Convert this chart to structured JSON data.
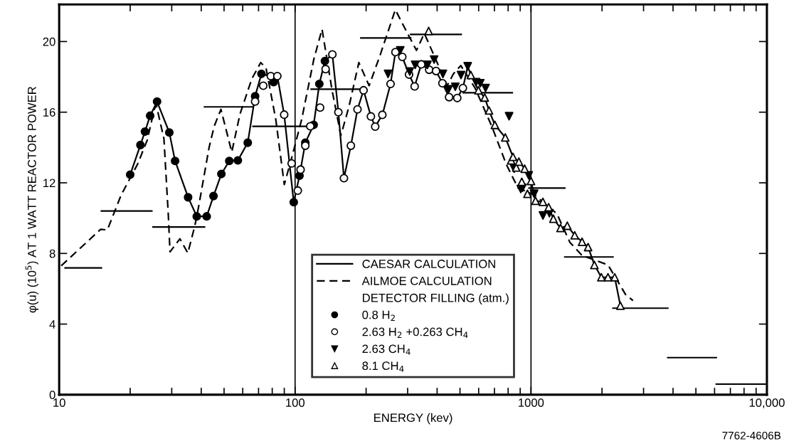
{
  "chart_data": {
    "type": "line",
    "xlabel": "ENERGY (kev)",
    "ylabel": "φ(u) (10$^{5}$) AT 1 WATT REACTOR POWER",
    "legend_title": "DETECTOR FILLING (atm.)",
    "log": "x",
    "xlim": [
      10,
      10000
    ],
    "xticks": [
      10,
      100,
      1000,
      {
        "value": 10000,
        "label": "10,000"
      }
    ],
    "ylim": [
      0,
      22.1
    ],
    "yticks": [
      0,
      4,
      8,
      12,
      16,
      20
    ],
    "ref_lines": [
      {
        "axis": "x",
        "value": 100,
        "color": "#000000"
      },
      {
        "axis": "x",
        "value": 1000,
        "color": "#000000"
      }
    ],
    "legend": "bottom",
    "annotations": [
      "7762-4606B"
    ],
    "series": [
      {
        "name": "CAESAR CALCULATION",
        "color": "#000000",
        "line_style": "solid",
        "x": [
          20.0,
          22.1,
          23.1,
          24.3,
          26.0,
          29.3,
          31.0,
          35.2,
          38.3,
          42.2,
          45.1,
          48.7,
          52.6,
          57.2,
          63.0,
          67.7,
          72.0,
          78.9,
          84.1,
          89.9,
          98.7,
          104.4,
          110.5,
          119.9,
          126.7,
          133.8,
          143.9,
          152.6,
          161.1,
          172.4,
          183.9,
          195.1,
          209.6,
          218.6,
          234.4,
          253.9,
          266.3,
          284.8,
          304.1,
          321.2,
          342.7,
          370.2,
          396.0,
          421.2,
          449.6,
          486.9,
          514.5,
          539.3,
          556,
          598.7,
          636.6,
          664,
          703,
          778,
          839,
          889,
          940,
          1000,
          1045,
          1123,
          1188,
          1244,
          1334,
          1425,
          1532,
          1646,
          1746,
          1857,
          1987,
          2120,
          2264,
          2393
        ],
        "values": [
          12.46,
          14.14,
          14.9,
          15.8,
          16.6,
          14.85,
          13.24,
          11.18,
          10.1,
          10.1,
          11.25,
          12.5,
          13.24,
          13.27,
          14.27,
          16.9,
          18.17,
          18.04,
          18.04,
          15.86,
          10.9,
          12.4,
          14.27,
          15.28,
          17.6,
          18.9,
          19.27,
          16.0,
          12.26,
          14.1,
          16.16,
          17.24,
          15.76,
          15.18,
          15.85,
          17.6,
          19.4,
          19.13,
          18.13,
          17.46,
          18.71,
          18.4,
          18.33,
          17.64,
          16.85,
          16.8,
          17.37,
          18.6,
          18.1,
          17.24,
          16.83,
          16.1,
          15.28,
          14.57,
          13.47,
          13.2,
          12.8,
          12.1,
          10.98,
          10.92,
          10.62,
          9.97,
          9.44,
          9.57,
          9.03,
          8.66,
          8.36,
          7.35,
          6.65,
          6.65,
          6.65,
          5.04
        ]
      },
      {
        "name": "AILMOE CALCULATION",
        "color": "#000000",
        "line_style": "dashed",
        "x": [
          10.2,
          15.0,
          16.0,
          18.3,
          21.5,
          23.6,
          25.3,
          25.8,
          27.8,
          29.0,
          29.5,
          32.5,
          35.1,
          37.6,
          39.0,
          43.2,
          45.4,
          48.5,
          53.9,
          58.4,
          65.6,
          71.5,
          75.3,
          82.8,
          90.0,
          97.0,
          106.7,
          120,
          130.1,
          143.5,
          156.3,
          169.1,
          186.3,
          206.0,
          229.6,
          266,
          304,
          327,
          353,
          393,
          441,
          469,
          504,
          579,
          682,
          785,
          880,
          1039,
          1288,
          1462,
          1645,
          2120,
          2518,
          2705
        ],
        "values": [
          7.3,
          9.37,
          9.33,
          11.3,
          13.06,
          14.4,
          16.16,
          16.4,
          14.5,
          10.24,
          8.09,
          8.83,
          8.02,
          9.57,
          10.65,
          14.0,
          15.2,
          16.16,
          13.74,
          15.89,
          17.9,
          18.81,
          18.5,
          15.6,
          11.9,
          13.47,
          15.6,
          18.98,
          20.7,
          17.24,
          14.68,
          16.3,
          18.81,
          17.5,
          19.25,
          21.8,
          20.3,
          19.5,
          20.46,
          19.05,
          17.5,
          18.17,
          18.64,
          17.37,
          15.2,
          13.06,
          11.72,
          11.3,
          10.24,
          8.63,
          7.89,
          7.35,
          5.67,
          5.33
        ]
      },
      {
        "color": "#000000",
        "line_style": "solid",
        "x": [
          10.6,
          15.1
        ],
        "values": [
          7.18,
          7.18
        ]
      },
      {
        "color": "#000000",
        "line_style": "solid",
        "x": [
          15.1,
          24.7
        ],
        "values": [
          10.4,
          10.4
        ]
      },
      {
        "color": "#000000",
        "line_style": "solid",
        "x": [
          25,
          41.3
        ],
        "values": [
          9.5,
          9.5
        ]
      },
      {
        "color": "#000000",
        "line_style": "solid",
        "x": [
          41.3,
          66.3
        ],
        "values": [
          16.3,
          16.3
        ]
      },
      {
        "color": "#000000",
        "line_style": "solid",
        "x": [
          66.3,
          117
        ],
        "values": [
          15.2,
          15.2
        ]
      },
      {
        "color": "#000000",
        "line_style": "solid",
        "x": [
          117,
          190
        ],
        "values": [
          17.3,
          17.3
        ]
      },
      {
        "color": "#000000",
        "line_style": "solid",
        "x": [
          190,
          309
        ],
        "values": [
          20.2,
          20.2
        ]
      },
      {
        "color": "#000000",
        "line_style": "solid",
        "x": [
          309,
          506
        ],
        "values": [
          20.4,
          20.4
        ]
      },
      {
        "color": "#000000",
        "line_style": "solid",
        "x": [
          516,
          833
        ],
        "values": [
          17.1,
          17.1
        ]
      },
      {
        "color": "#000000",
        "line_style": "solid",
        "x": [
          981,
          1391
        ],
        "values": [
          11.7,
          11.7
        ]
      },
      {
        "color": "#000000",
        "line_style": "solid",
        "x": [
          1391,
          2226
        ],
        "values": [
          7.8,
          7.8
        ]
      },
      {
        "color": "#000000",
        "line_style": "solid",
        "x": [
          2226,
          3800
        ],
        "values": [
          4.9,
          4.9
        ]
      },
      {
        "color": "#000000",
        "line_style": "solid",
        "x": [
          3800,
          6100
        ],
        "values": [
          2.1,
          2.1
        ]
      },
      {
        "color": "#000000",
        "line_style": "solid",
        "x": [
          6100,
          10000
        ],
        "values": [
          0.6,
          0.6
        ]
      },
      {
        "name": "0.8 H$_{2}$",
        "type": "scatter",
        "color": "#000000",
        "marker": "circle",
        "x": [
          20.0,
          22.1,
          23.1,
          24.3,
          26.0,
          29.3,
          31.0,
          35.2,
          38.3,
          42.2,
          45.1,
          48.7,
          52.6,
          57.2,
          63.0,
          67.7,
          72.0,
          81.1,
          98.7,
          104.4,
          110.5,
          119.9,
          126.7,
          133.8
        ],
        "values": [
          12.46,
          14.14,
          14.9,
          15.8,
          16.6,
          14.85,
          13.24,
          11.18,
          10.1,
          10.1,
          11.25,
          12.5,
          13.24,
          13.27,
          14.27,
          16.9,
          18.17,
          17.7,
          10.9,
          12.4,
          14.27,
          15.28,
          17.6,
          18.9
        ]
      },
      {
        "name": "2.63 H$_{2}$ +0.263 CH$_{4}$",
        "type": "scatter",
        "color": "#ffffff",
        "marker": "circle",
        "x": [
          67.7,
          73.3,
          78.9,
          84.1,
          89.9,
          96.7,
          102.7,
          105.5,
          110.5,
          116.0,
          127.6,
          134.7,
          143.9,
          152.6,
          161.1,
          172.4,
          183.9,
          195.1,
          209.6,
          218.6,
          234.4,
          253.9,
          266.3,
          284.8,
          304.1,
          321.2,
          342.7,
          370.2,
          396.0,
          421.2,
          449.6,
          486.9,
          514.5
        ],
        "values": [
          16.6,
          17.5,
          18.04,
          18.04,
          15.86,
          13.1,
          11.56,
          12.75,
          14.1,
          15.2,
          16.26,
          18.44,
          19.27,
          16.0,
          12.26,
          14.1,
          16.16,
          17.24,
          15.76,
          15.18,
          15.85,
          17.6,
          19.4,
          19.13,
          18.13,
          17.46,
          18.71,
          18.4,
          18.33,
          17.64,
          16.85,
          16.8,
          17.37
        ]
      },
      {
        "name": "2.63 CH$_{4}$",
        "type": "scatter",
        "color": "#000000",
        "marker": "triangle_down",
        "x": [
          247.8,
          279.2,
          306.3,
          322.9,
          364.0,
          388.4,
          423.2,
          447.4,
          477.6,
          504.9,
          539.3,
          584.7,
          609.6,
          641.7,
          807.6,
          848.6,
          905,
          920,
          978.4,
          1031,
          1124,
          1197
        ],
        "values": [
          18.17,
          19.5,
          18.3,
          18.68,
          18.68,
          18.98,
          18.17,
          17.3,
          17.44,
          18.1,
          18.6,
          17.7,
          17.64,
          17.37,
          15.77,
          12.8,
          11.65,
          11.72,
          12.42,
          11.38,
          10.15,
          10.28
        ]
      },
      {
        "name": "8.1 CH$_{4}$",
        "type": "scatter",
        "color": "#ffffff",
        "marker": "triangle",
        "x": [
          368.3,
          556,
          598.7,
          636.6,
          664,
          703,
          778,
          824,
          839,
          866,
          889,
          914,
          940,
          966,
          1000,
          1045,
          1123,
          1188,
          1244,
          1334,
          1425,
          1532,
          1646,
          1746,
          1857,
          1987,
          2120,
          2264,
          2393
        ],
        "values": [
          20.6,
          18.1,
          17.24,
          16.83,
          16.1,
          15.28,
          14.57,
          13.27,
          13.47,
          12.87,
          13.2,
          12.06,
          12.8,
          11.38,
          12.1,
          10.98,
          10.92,
          10.62,
          9.97,
          9.44,
          9.57,
          9.03,
          8.66,
          8.36,
          7.35,
          6.65,
          6.65,
          6.65,
          5.04
        ]
      }
    ]
  }
}
